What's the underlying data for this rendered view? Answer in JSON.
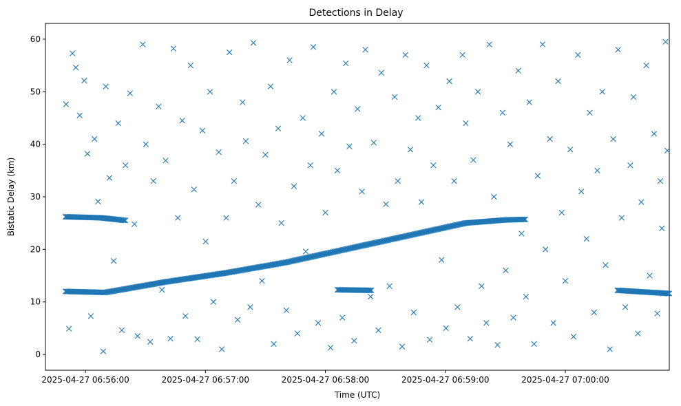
{
  "chart_data": {
    "type": "scatter",
    "title": "Detections in Delay",
    "xlabel": "Time (UTC)",
    "ylabel": "Bistatic Delay (km)",
    "marker": "x",
    "color": "#1f77b4",
    "x_unit": "seconds since 2025-04-27 06:55:40 UTC",
    "xlim": [
      0,
      312
    ],
    "ylim": [
      -3,
      63
    ],
    "x_ticks": [
      {
        "value": 20,
        "label": "2025-04-27 06:56:00"
      },
      {
        "value": 80,
        "label": "2025-04-27 06:57:00"
      },
      {
        "value": 140,
        "label": "2025-04-27 06:58:00"
      },
      {
        "value": 200,
        "label": "2025-04-27 06:59:00"
      },
      {
        "value": 260,
        "label": "2025-04-27 07:00:00"
      }
    ],
    "y_ticks": [
      0,
      10,
      20,
      30,
      40,
      50,
      60
    ],
    "tracks": [
      {
        "name": "main-track",
        "x": [
          10,
          30,
          60,
          90,
          120,
          150,
          180,
          210,
          230,
          240
        ],
        "y": [
          12,
          11.8,
          13.8,
          15.5,
          17.5,
          20.0,
          22.5,
          25.0,
          25.6,
          25.7
        ]
      },
      {
        "name": "upper-track",
        "x": [
          10,
          28,
          40
        ],
        "y": [
          26.2,
          26.0,
          25.5
        ]
      },
      {
        "name": "mid-track",
        "x": [
          146,
          163
        ],
        "y": [
          12.3,
          12.2
        ]
      },
      {
        "name": "late-track",
        "x": [
          286,
          312
        ],
        "y": [
          12.2,
          11.6
        ]
      }
    ],
    "noise_points": [
      [
        10.3,
        47.6
      ],
      [
        11.8,
        4.9
      ],
      [
        13.5,
        57.3
      ],
      [
        15.2,
        54.6
      ],
      [
        17.1,
        45.5
      ],
      [
        19.4,
        52.1
      ],
      [
        21.0,
        38.2
      ],
      [
        22.7,
        7.3
      ],
      [
        24.5,
        41.0
      ],
      [
        26.3,
        29.1
      ],
      [
        28.9,
        0.6
      ],
      [
        30.2,
        51.0
      ],
      [
        32.0,
        33.6
      ],
      [
        34.1,
        17.8
      ],
      [
        36.4,
        44.0
      ],
      [
        38.2,
        4.6
      ],
      [
        40.0,
        36.0
      ],
      [
        42.3,
        49.7
      ],
      [
        44.5,
        24.8
      ],
      [
        46.1,
        3.5
      ],
      [
        48.7,
        59.0
      ],
      [
        50.2,
        40.0
      ],
      [
        52.4,
        2.4
      ],
      [
        54.0,
        33.0
      ],
      [
        56.6,
        47.2
      ],
      [
        58.3,
        12.3
      ],
      [
        60.1,
        36.9
      ],
      [
        62.5,
        3.0
      ],
      [
        64.0,
        58.2
      ],
      [
        66.2,
        26.0
      ],
      [
        68.4,
        44.5
      ],
      [
        70.0,
        7.3
      ],
      [
        72.6,
        55.0
      ],
      [
        74.3,
        31.4
      ],
      [
        76.0,
        2.9
      ],
      [
        78.5,
        42.6
      ],
      [
        80.1,
        21.5
      ],
      [
        82.3,
        50.0
      ],
      [
        84.0,
        10.0
      ],
      [
        86.7,
        38.5
      ],
      [
        88.2,
        1.0
      ],
      [
        90.4,
        26.0
      ],
      [
        92.0,
        57.5
      ],
      [
        94.3,
        33.0
      ],
      [
        96.1,
        6.6
      ],
      [
        98.6,
        48.0
      ],
      [
        100.2,
        40.6
      ],
      [
        102.4,
        9.0
      ],
      [
        104.0,
        59.3
      ],
      [
        106.5,
        28.5
      ],
      [
        108.3,
        14.0
      ],
      [
        110.0,
        38.0
      ],
      [
        112.6,
        51.0
      ],
      [
        114.2,
        2.0
      ],
      [
        116.4,
        43.0
      ],
      [
        118.0,
        25.0
      ],
      [
        120.5,
        8.4
      ],
      [
        122.1,
        56.0
      ],
      [
        124.3,
        32.0
      ],
      [
        126.0,
        4.0
      ],
      [
        128.7,
        45.0
      ],
      [
        130.2,
        19.6
      ],
      [
        132.5,
        36.0
      ],
      [
        134.0,
        58.5
      ],
      [
        136.4,
        6.0
      ],
      [
        138.1,
        42.0
      ],
      [
        140.0,
        27.0
      ],
      [
        142.6,
        1.3
      ],
      [
        144.3,
        50.0
      ],
      [
        146.0,
        35.0
      ],
      [
        148.5,
        7.0
      ],
      [
        150.2,
        55.4
      ],
      [
        152.0,
        39.6
      ],
      [
        154.4,
        2.6
      ],
      [
        156.1,
        46.7
      ],
      [
        158.3,
        31.0
      ],
      [
        160.0,
        58.0
      ],
      [
        162.6,
        11.0
      ],
      [
        164.2,
        40.3
      ],
      [
        166.5,
        4.6
      ],
      [
        168.0,
        53.6
      ],
      [
        170.3,
        28.6
      ],
      [
        172.1,
        13.0
      ],
      [
        174.6,
        49.0
      ],
      [
        176.2,
        33.0
      ],
      [
        178.4,
        1.5
      ],
      [
        180.0,
        57.0
      ],
      [
        182.5,
        39.0
      ],
      [
        184.2,
        8.0
      ],
      [
        186.4,
        45.0
      ],
      [
        188.0,
        29.0
      ],
      [
        190.6,
        55.0
      ],
      [
        192.2,
        2.8
      ],
      [
        194.0,
        36.0
      ],
      [
        196.5,
        47.0
      ],
      [
        198.1,
        18.0
      ],
      [
        200.3,
        5.0
      ],
      [
        202.0,
        52.0
      ],
      [
        204.4,
        33.0
      ],
      [
        206.1,
        9.0
      ],
      [
        208.6,
        57.0
      ],
      [
        210.2,
        44.0
      ],
      [
        212.4,
        3.0
      ],
      [
        214.0,
        37.0
      ],
      [
        216.3,
        50.0
      ],
      [
        218.1,
        13.0
      ],
      [
        220.5,
        6.0
      ],
      [
        222.0,
        59.0
      ],
      [
        224.3,
        30.0
      ],
      [
        226.1,
        1.8
      ],
      [
        228.6,
        46.0
      ],
      [
        230.2,
        16.0
      ],
      [
        232.4,
        40.0
      ],
      [
        234.0,
        7.0
      ],
      [
        236.5,
        54.0
      ],
      [
        238.1,
        23.0
      ],
      [
        240.3,
        11.0
      ],
      [
        242.0,
        48.0
      ],
      [
        244.4,
        2.0
      ],
      [
        246.2,
        34.0
      ],
      [
        248.6,
        59.0
      ],
      [
        250.1,
        20.0
      ],
      [
        252.3,
        41.0
      ],
      [
        254.0,
        6.0
      ],
      [
        256.4,
        52.0
      ],
      [
        258.2,
        27.0
      ],
      [
        260.0,
        14.0
      ],
      [
        262.5,
        39.0
      ],
      [
        264.1,
        3.4
      ],
      [
        266.3,
        57.0
      ],
      [
        268.0,
        31.0
      ],
      [
        270.6,
        22.0
      ],
      [
        272.2,
        46.0
      ],
      [
        274.4,
        8.0
      ],
      [
        276.0,
        35.0
      ],
      [
        278.5,
        50.0
      ],
      [
        280.1,
        17.0
      ],
      [
        282.3,
        1.0
      ],
      [
        284.0,
        41.0
      ],
      [
        286.4,
        58.0
      ],
      [
        288.2,
        26.0
      ],
      [
        290.0,
        9.0
      ],
      [
        292.5,
        36.0
      ],
      [
        294.1,
        49.0
      ],
      [
        296.3,
        4.0
      ],
      [
        298.0,
        29.0
      ],
      [
        300.5,
        55.0
      ],
      [
        302.2,
        15.0
      ],
      [
        304.4,
        42.0
      ],
      [
        306.0,
        7.8
      ],
      [
        308.3,
        24.0
      ],
      [
        310.1,
        59.5
      ],
      [
        311.0,
        38.8
      ],
      [
        309.0,
        11.6
      ],
      [
        307.5,
        33.0
      ]
    ]
  }
}
